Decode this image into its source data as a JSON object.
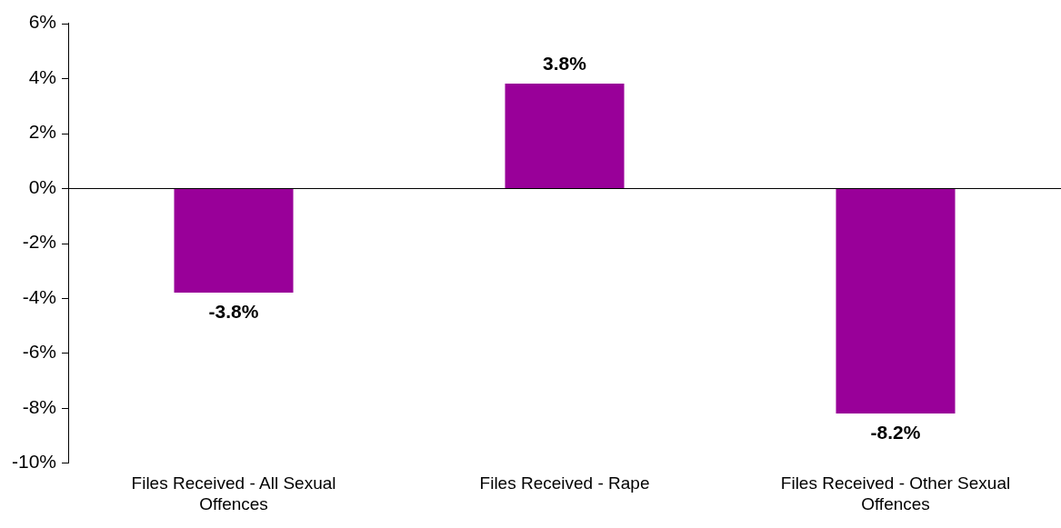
{
  "chart_data": {
    "type": "bar",
    "categories": [
      "Files Received - All Sexual Offences",
      "Files Received - Rape",
      "Files Received - Other Sexual Offences"
    ],
    "values": [
      -3.8,
      3.8,
      -8.2
    ],
    "value_labels": [
      "-3.8%",
      "3.8%",
      "-8.2%"
    ],
    "color": "#990099",
    "ylim": [
      -10,
      6
    ],
    "yticks": [
      {
        "value": -10,
        "label": "-10%"
      },
      {
        "value": -8,
        "label": "-8%"
      },
      {
        "value": -6,
        "label": "-6%"
      },
      {
        "value": -4,
        "label": "-4%"
      },
      {
        "value": -2,
        "label": "-2%"
      },
      {
        "value": 0,
        "label": "0%"
      },
      {
        "value": 2,
        "label": "2%"
      },
      {
        "value": 4,
        "label": "4%"
      },
      {
        "value": 6,
        "label": "6%"
      }
    ],
    "ref_lines": [
      {
        "axis": "y",
        "value": 0,
        "color": "#000000"
      }
    ],
    "grid": false,
    "legend": false
  }
}
